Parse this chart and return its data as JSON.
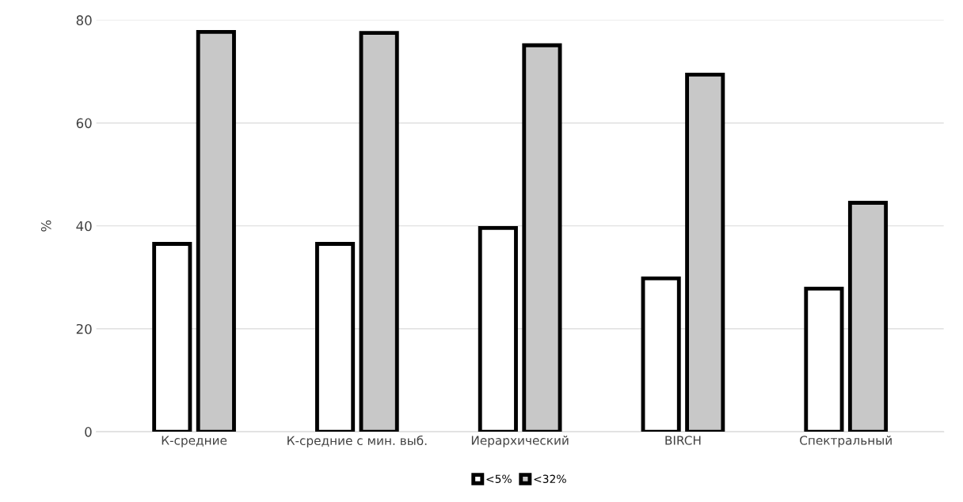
{
  "chart_data": {
    "type": "bar",
    "ylabel": "%",
    "categories": [
      "К-средние",
      "К-средние с мин. выб.",
      "Иерархический",
      "BIRCH",
      "Спектральный"
    ],
    "series": [
      {
        "name": "<5%",
        "color": "#ffffff",
        "values": [
          36.5,
          36.5,
          39.6,
          29.8,
          27.8
        ]
      },
      {
        "name": "<32%",
        "color": "#c8c8c8",
        "values": [
          77.7,
          77.5,
          75.1,
          69.4,
          44.5
        ]
      }
    ],
    "ylim": [
      0,
      80
    ],
    "yticks": [
      0,
      20,
      40,
      60,
      80
    ],
    "grid": "y",
    "legend": "bottom"
  }
}
